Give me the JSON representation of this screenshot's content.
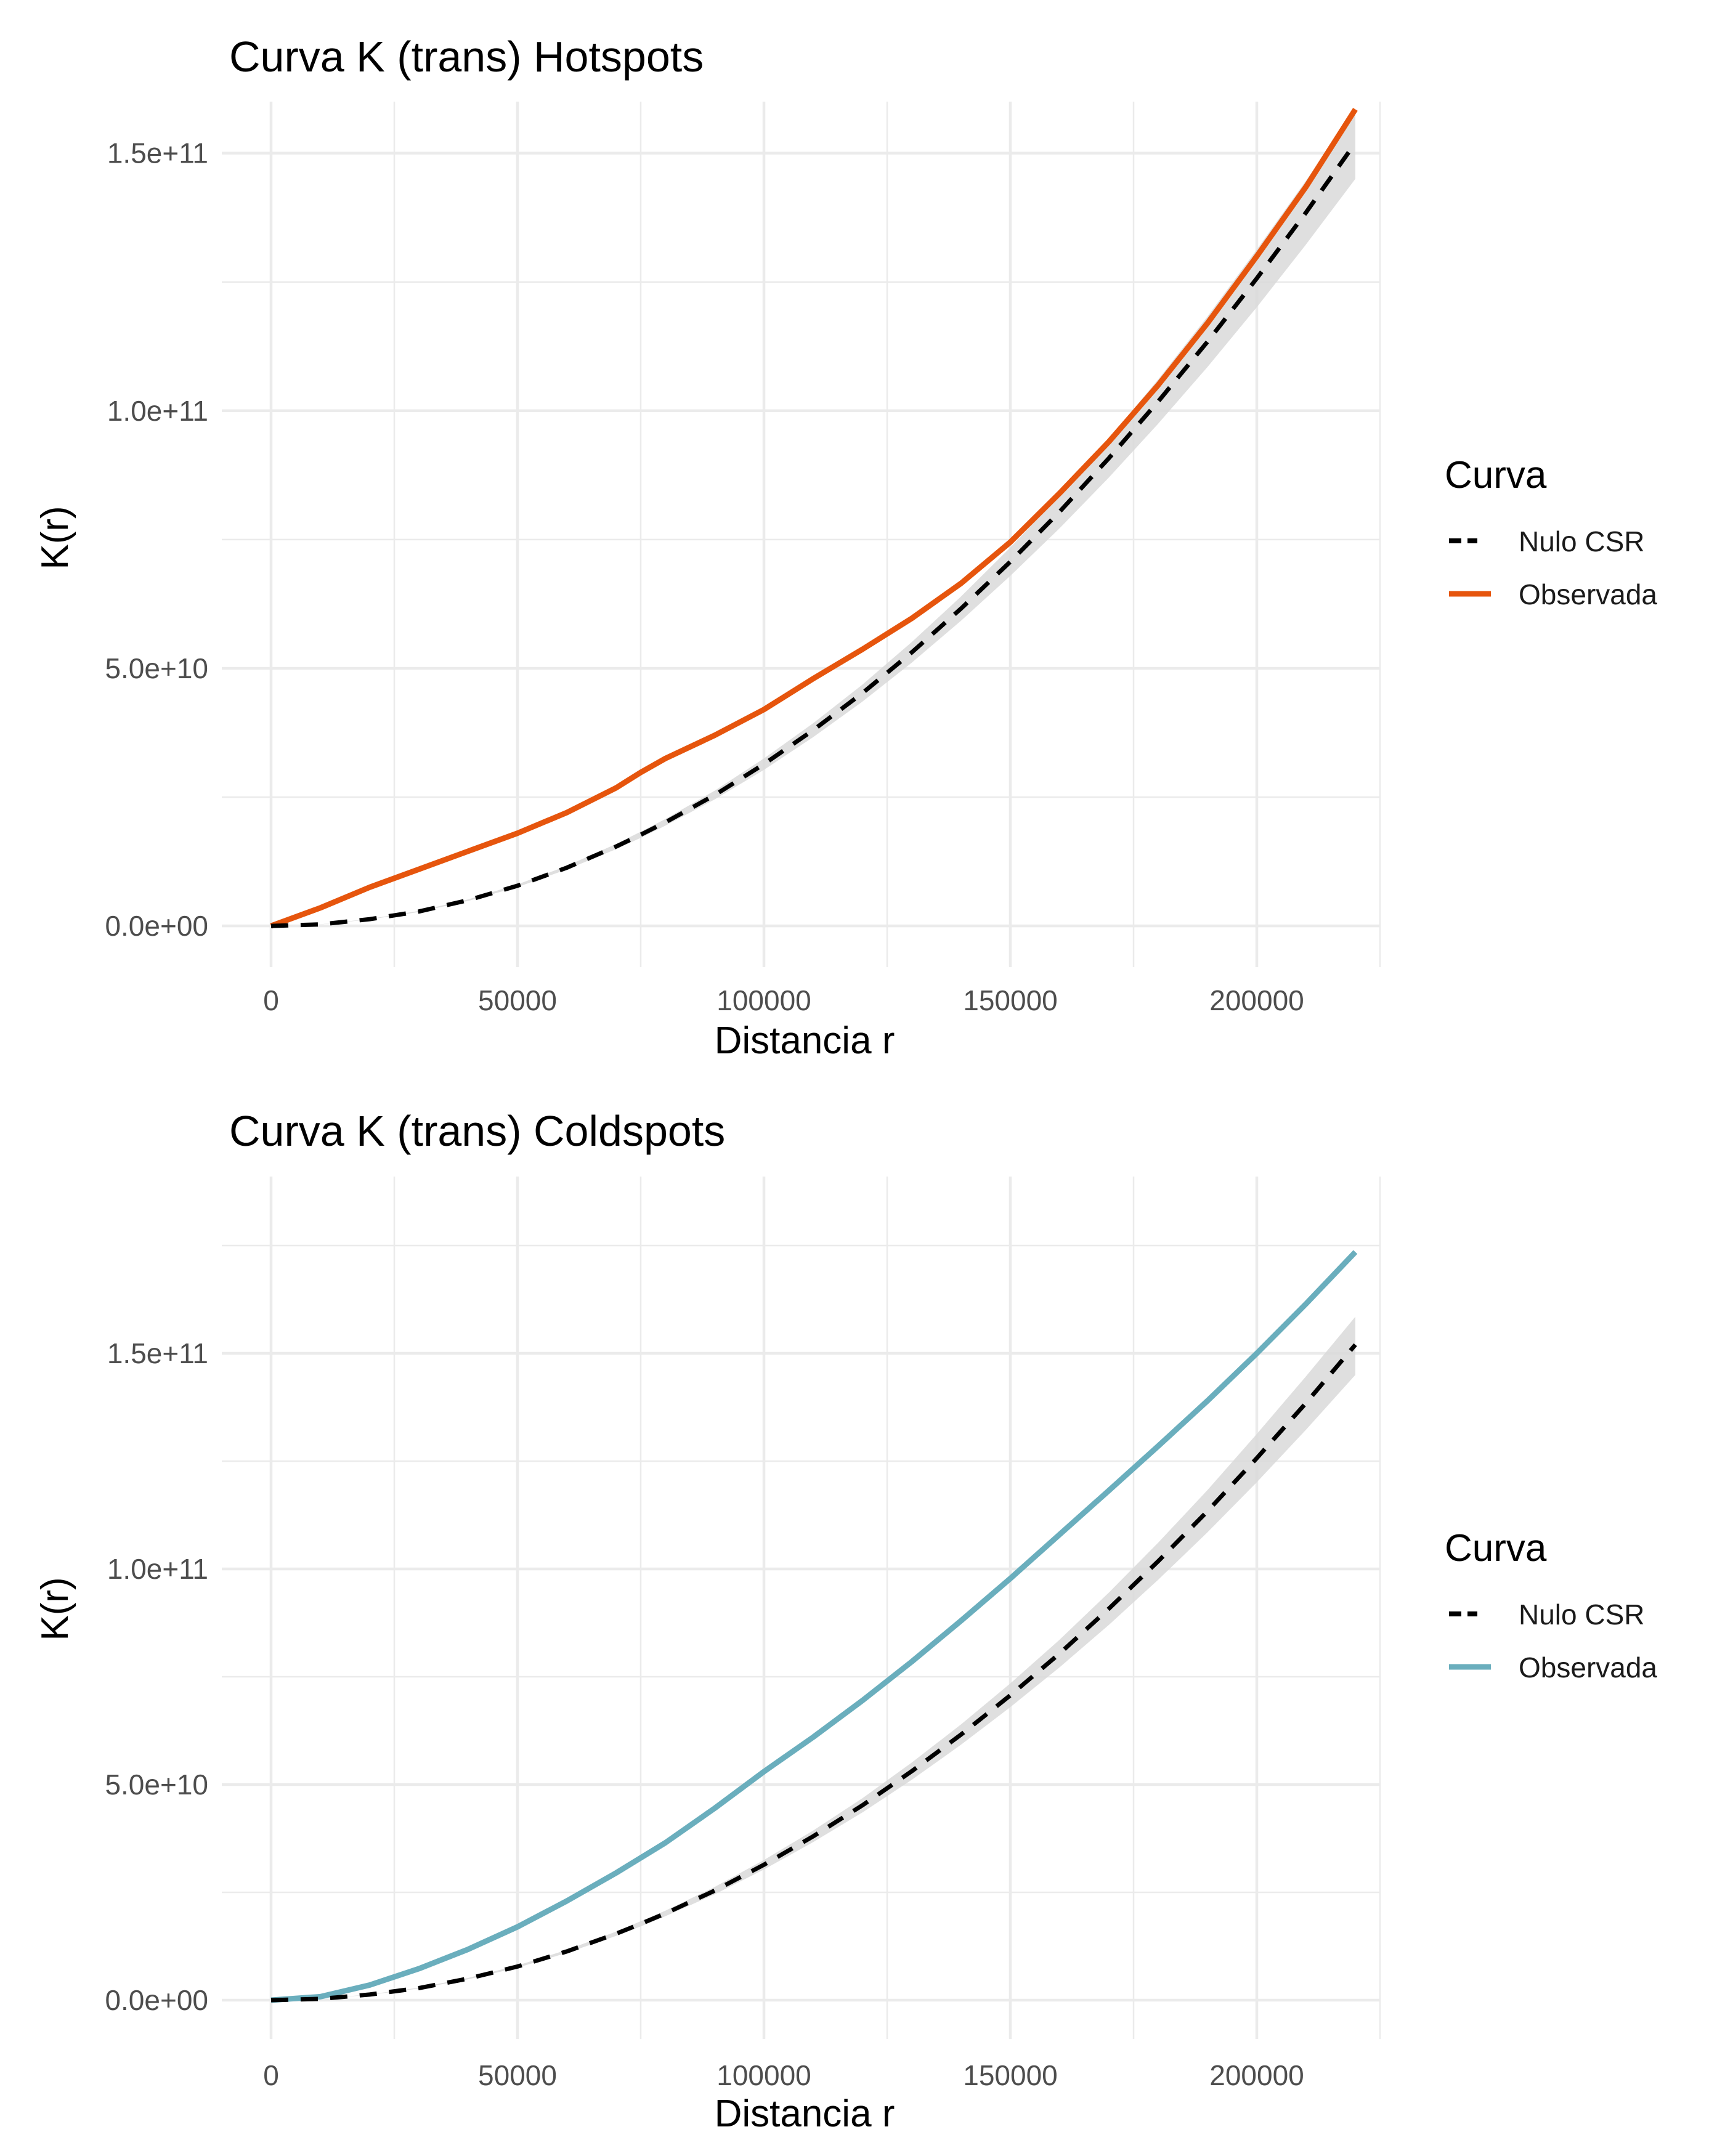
{
  "colors": {
    "hot": "#e6550d",
    "cold": "#6aaebd",
    "null": "#000000",
    "envelope": "#d9d9d9",
    "grid": "#ebebeb"
  },
  "chart_data": [
    {
      "type": "line",
      "title": "Curva K (trans) Hotspots",
      "xlabel": "Distancia r",
      "ylabel": "K(r)",
      "xlim": [
        -10000,
        225000
      ],
      "ylim": [
        -8000000000,
        160000000000
      ],
      "x_ticks": [
        0,
        50000,
        100000,
        150000,
        200000
      ],
      "x_tick_labels": [
        "0",
        "50000",
        "100000",
        "150000",
        "200000"
      ],
      "y_ticks": [
        0,
        50000000000,
        100000000000,
        150000000000
      ],
      "y_tick_labels": [
        "0.0e+00",
        "5.0e+10",
        "1.0e+11",
        "1.5e+11"
      ],
      "legend": {
        "title": "Curva",
        "position": "right",
        "entries": [
          {
            "label": "Nulo CSR",
            "style": "dashed",
            "color": "#000000"
          },
          {
            "label": "Observada",
            "style": "solid",
            "color": "#e6550d"
          }
        ]
      },
      "grid": true,
      "x": [
        0,
        10000,
        20000,
        30000,
        40000,
        50000,
        60000,
        70000,
        75000,
        80000,
        90000,
        100000,
        110000,
        120000,
        130000,
        140000,
        150000,
        160000,
        170000,
        180000,
        190000,
        200000,
        210000,
        220000
      ],
      "series": [
        {
          "name": "Observada",
          "values": [
            0,
            3500000000,
            7500000000,
            11000000000,
            14500000000,
            18000000000,
            22000000000,
            26800000000,
            29800000000,
            32500000000,
            37000000000,
            42000000000,
            48000000000,
            53700000000,
            59700000000,
            66500000000,
            74500000000,
            84000000000,
            94000000000,
            105000000000,
            117000000000,
            130000000000,
            143500000000,
            158500000000
          ]
        },
        {
          "name": "Nulo CSR",
          "values": [
            0,
            300000000,
            1300000000,
            2800000000,
            5000000000,
            7800000000,
            11300000000,
            15400000000,
            17700000000,
            20100000000,
            25400000000,
            31400000000,
            38000000000,
            45200000000,
            53100000000,
            61600000000,
            70700000000,
            80400000000,
            90800000000,
            101800000000,
            113400000000,
            125700000000,
            138500000000,
            152000000000
          ]
        }
      ],
      "envelope": {
        "lower": [
          0,
          290000000,
          1250000000,
          2700000000,
          4850000000,
          7550000000,
          10950000000,
          14900000000,
          17100000000,
          19450000000,
          24550000000,
          30300000000,
          36650000000,
          43550000000,
          51100000000,
          59250000000,
          67950000000,
          77200000000,
          87050000000,
          97500000000,
          108500000000,
          120100000000,
          132300000000,
          145000000000
        ],
        "upper": [
          0,
          310000000,
          1350000000,
          2900000000,
          5150000000,
          8050000000,
          11650000000,
          15900000000,
          18300000000,
          20750000000,
          26250000000,
          32500000000,
          39350000000,
          46850000000,
          55100000000,
          63950000000,
          73450000000,
          83600000000,
          94550000000,
          106100000000,
          118300000000,
          131300000000,
          144700000000,
          158500000000
        ]
      }
    },
    {
      "type": "line",
      "title": "Curva K (trans) Coldspots",
      "xlabel": "Distancia r",
      "ylabel": "K(r)",
      "xlim": [
        -10000,
        225000
      ],
      "ylim": [
        -9000000000,
        191000000000
      ],
      "x_ticks": [
        0,
        50000,
        100000,
        150000,
        200000
      ],
      "x_tick_labels": [
        "0",
        "50000",
        "100000",
        "150000",
        "200000"
      ],
      "y_ticks": [
        0,
        50000000000,
        100000000000,
        150000000000
      ],
      "y_tick_labels": [
        "0.0e+00",
        "5.0e+10",
        "1.0e+11",
        "1.5e+11"
      ],
      "legend": {
        "title": "Curva",
        "position": "right",
        "entries": [
          {
            "label": "Nulo CSR",
            "style": "dashed",
            "color": "#000000"
          },
          {
            "label": "Observada",
            "style": "solid",
            "color": "#6aaebd"
          }
        ]
      },
      "grid": true,
      "x": [
        0,
        10000,
        20000,
        30000,
        40000,
        50000,
        60000,
        70000,
        75000,
        80000,
        90000,
        100000,
        110000,
        120000,
        130000,
        140000,
        150000,
        160000,
        170000,
        180000,
        190000,
        200000,
        210000,
        220000
      ],
      "series": [
        {
          "name": "Observada",
          "values": [
            0,
            800000000,
            3500000000,
            7300000000,
            11800000000,
            17000000000,
            23000000000,
            29500000000,
            33000000000,
            36500000000,
            44500000000,
            53000000000,
            61000000000,
            69500000000,
            78500000000,
            88000000000,
            97800000000,
            108000000000,
            118200000000,
            128500000000,
            139000000000,
            150000000000,
            161500000000,
            173500000000
          ]
        },
        {
          "name": "Nulo CSR",
          "values": [
            0,
            300000000,
            1300000000,
            2800000000,
            5000000000,
            7800000000,
            11300000000,
            15400000000,
            17700000000,
            20100000000,
            25400000000,
            31400000000,
            38000000000,
            45200000000,
            53100000000,
            61600000000,
            70700000000,
            80400000000,
            90800000000,
            101800000000,
            113400000000,
            125700000000,
            138500000000,
            152000000000
          ]
        }
      ],
      "envelope": {
        "lower": [
          0,
          290000000,
          1250000000,
          2700000000,
          4850000000,
          7550000000,
          10950000000,
          14900000000,
          17100000000,
          19450000000,
          24550000000,
          30300000000,
          36650000000,
          43550000000,
          51100000000,
          59250000000,
          67950000000,
          77200000000,
          87050000000,
          97500000000,
          108500000000,
          120100000000,
          132300000000,
          145000000000
        ],
        "upper": [
          0,
          310000000,
          1350000000,
          2900000000,
          5150000000,
          8050000000,
          11650000000,
          15900000000,
          18300000000,
          20750000000,
          26250000000,
          32500000000,
          39350000000,
          46850000000,
          55100000000,
          63950000000,
          73450000000,
          83600000000,
          94550000000,
          106100000000,
          118300000000,
          131300000000,
          144700000000,
          158500000000
        ]
      }
    }
  ]
}
